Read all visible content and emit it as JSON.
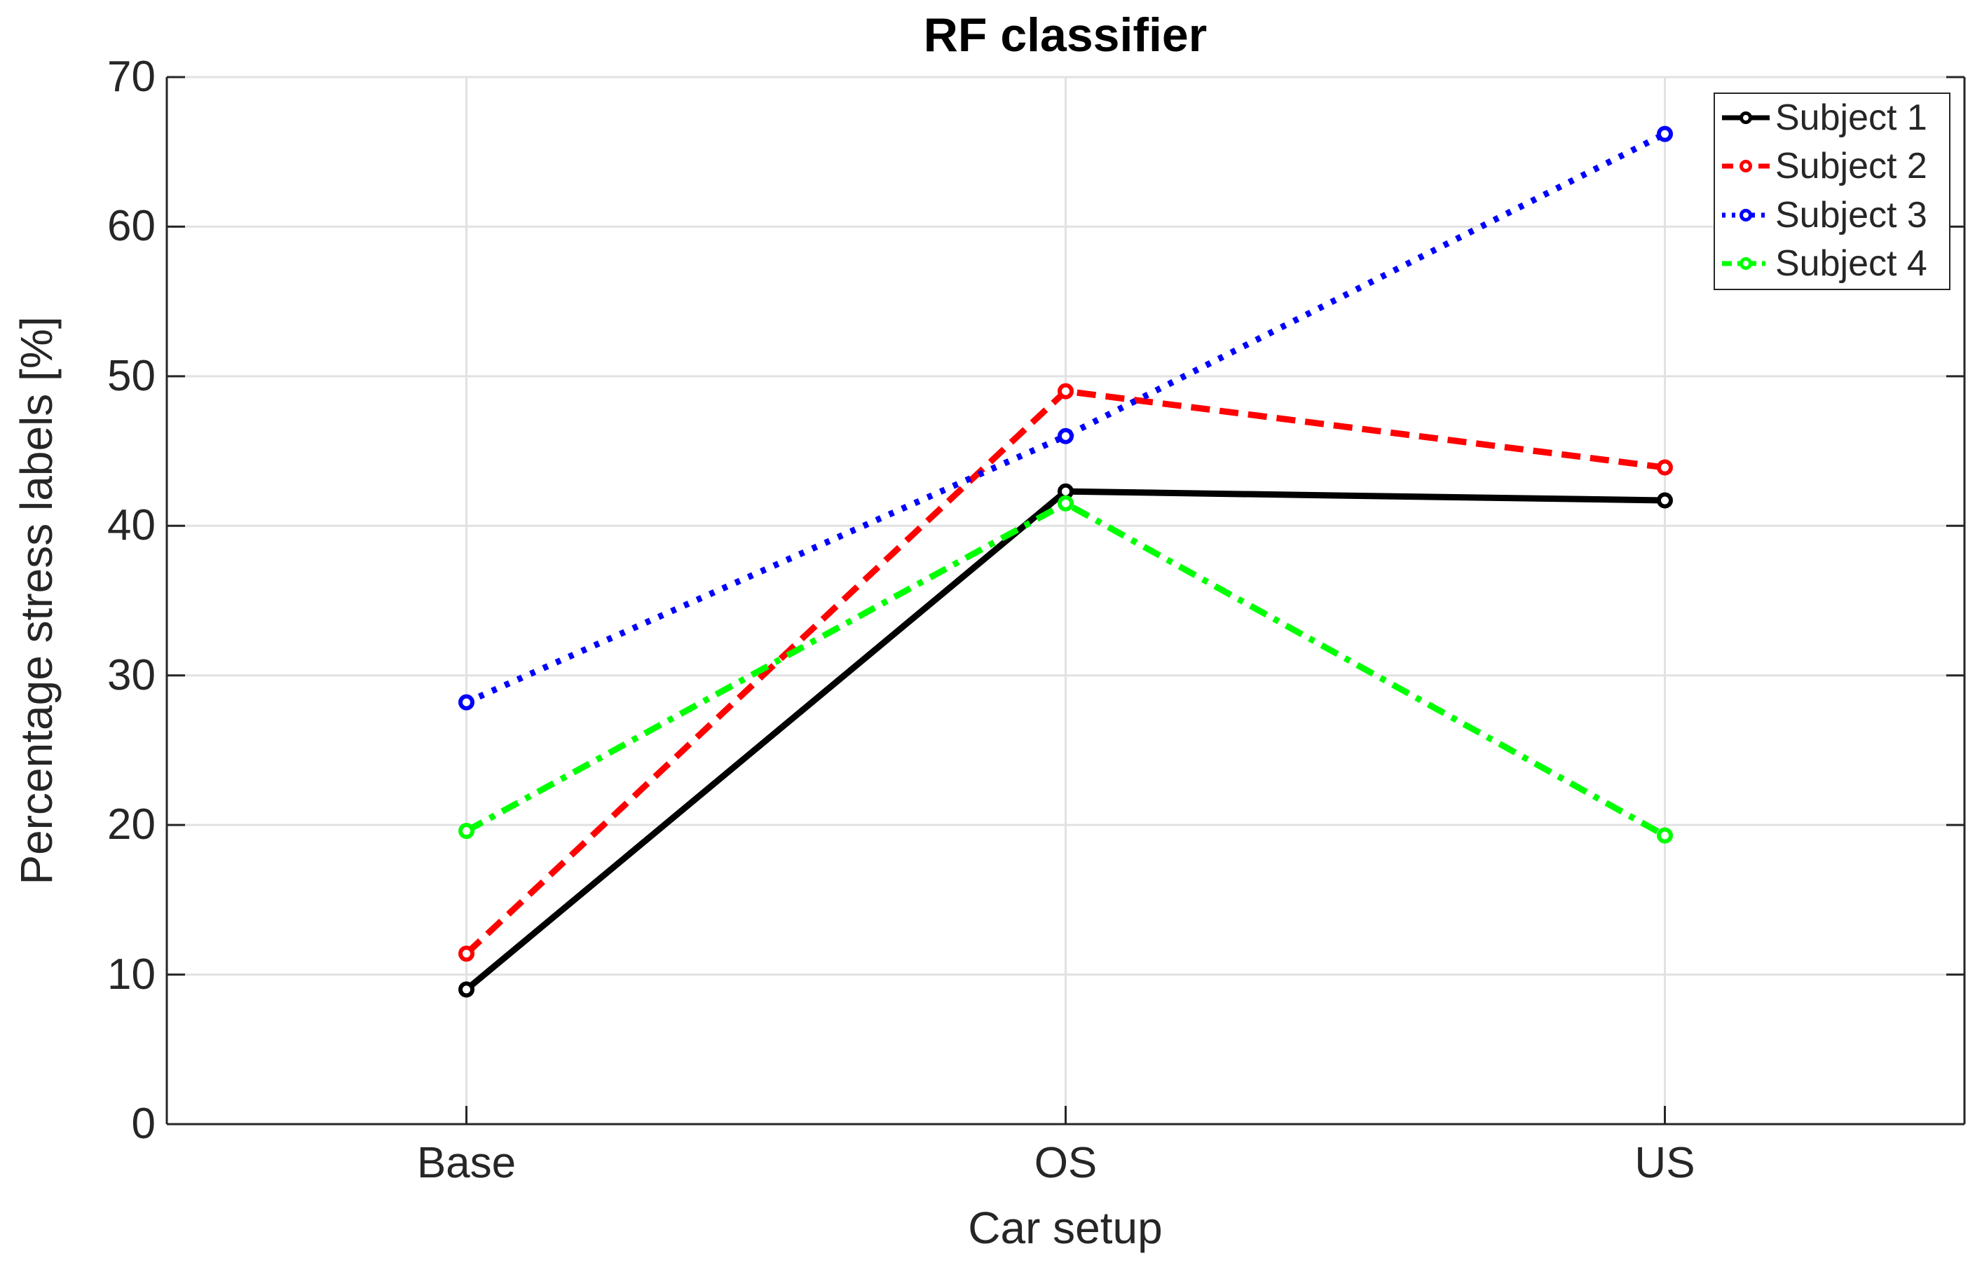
{
  "chart_data": {
    "type": "line",
    "title": "RF classifier",
    "xlabel": "Car setup",
    "ylabel": "Percentage stress labels [%]",
    "categories": [
      "Base",
      "OS",
      "US"
    ],
    "ylim": [
      0,
      70
    ],
    "yticks": [
      0,
      10,
      20,
      30,
      40,
      50,
      60,
      70
    ],
    "grid": true,
    "legend_position": "top-right",
    "legend_entries": [
      "Subject 1",
      "Subject 2",
      "Subject 3",
      "Subject 4"
    ],
    "series": [
      {
        "name": "Subject 1",
        "color": "#000000",
        "line_style": "solid",
        "marker": "circle",
        "values": [
          9.0,
          42.3,
          41.7
        ]
      },
      {
        "name": "Subject 2",
        "color": "#FF0000",
        "line_style": "dashed",
        "marker": "circle",
        "values": [
          11.4,
          49.0,
          43.9
        ]
      },
      {
        "name": "Subject 3",
        "color": "#0000FF",
        "line_style": "dotted",
        "marker": "circle",
        "values": [
          28.2,
          46.0,
          66.2
        ]
      },
      {
        "name": "Subject 4",
        "color": "#00FF00",
        "line_style": "dashdot",
        "marker": "circle",
        "values": [
          19.6,
          41.5,
          19.3
        ]
      }
    ],
    "colors": {
      "axis": "#262626",
      "grid": "#E2E2E2",
      "top_border": "#E2E2E2",
      "background": "#FFFFFF",
      "marker_fill": "#FFFFFF"
    }
  }
}
